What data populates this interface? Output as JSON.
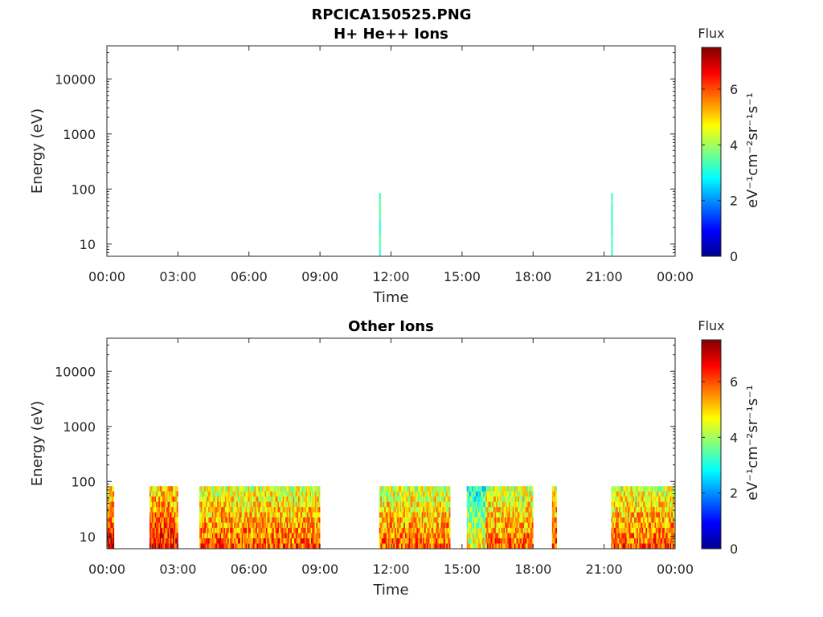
{
  "figure": {
    "title": "RPCICA150525.PNG"
  },
  "chart_data": [
    {
      "type": "heatmap",
      "title": "H+ He++ Ions",
      "xlabel": "Time",
      "ylabel": "Energy (eV)",
      "x_ticks": [
        "00:00",
        "03:00",
        "06:00",
        "09:00",
        "12:00",
        "15:00",
        "18:00",
        "21:00",
        "00:00"
      ],
      "x_range_hours": [
        0,
        24
      ],
      "y_scale": "log",
      "y_ticks": [
        10,
        100,
        1000,
        10000
      ],
      "y_tick_labels": [
        "10",
        "100",
        "1000",
        "10000"
      ],
      "y_range": [
        6,
        40000
      ],
      "colorbar": {
        "title": "Flux",
        "label": "eV⁻¹cm⁻²sr⁻¹s⁻¹",
        "range": [
          0,
          7.5
        ],
        "ticks": [
          0,
          2,
          4,
          6
        ],
        "colormap": "jet"
      },
      "data_blocks": [
        {
          "start_hour": 11.5,
          "end_hour": 11.56,
          "e_min": 6,
          "e_max": 85,
          "flux": 3.3
        },
        {
          "start_hour": 21.3,
          "end_hour": 21.36,
          "e_min": 6,
          "e_max": 85,
          "flux": 3.3
        }
      ]
    },
    {
      "type": "heatmap",
      "title": "Other Ions",
      "xlabel": "Time",
      "ylabel": "Energy (eV)",
      "x_ticks": [
        "00:00",
        "03:00",
        "06:00",
        "09:00",
        "12:00",
        "15:00",
        "18:00",
        "21:00",
        "00:00"
      ],
      "x_range_hours": [
        0,
        24
      ],
      "y_scale": "log",
      "y_ticks": [
        10,
        100,
        1000,
        10000
      ],
      "y_tick_labels": [
        "10",
        "100",
        "1000",
        "10000"
      ],
      "y_range": [
        6,
        40000
      ],
      "colorbar": {
        "title": "Flux",
        "label": "eV⁻¹cm⁻²sr⁻¹s⁻¹",
        "range": [
          0,
          7.5
        ],
        "ticks": [
          0,
          2,
          4,
          6
        ],
        "colormap": "jet"
      },
      "data_blocks": [
        {
          "start_hour": 0.0,
          "end_hour": 0.3,
          "e_min": 6,
          "e_max": 82,
          "flux": 6.6
        },
        {
          "start_hour": 1.8,
          "end_hour": 3.0,
          "e_min": 6,
          "e_max": 82,
          "flux": 6.5
        },
        {
          "start_hour": 3.9,
          "end_hour": 9.0,
          "e_min": 6,
          "e_max": 82,
          "flux": 6.0
        },
        {
          "start_hour": 11.5,
          "end_hour": 14.5,
          "e_min": 6,
          "e_max": 82,
          "flux": 5.9
        },
        {
          "start_hour": 15.2,
          "end_hour": 16.0,
          "e_min": 6,
          "e_max": 82,
          "flux": 4.6
        },
        {
          "start_hour": 16.0,
          "end_hour": 18.0,
          "e_min": 6,
          "e_max": 82,
          "flux": 5.8
        },
        {
          "start_hour": 18.8,
          "end_hour": 19.0,
          "e_min": 6,
          "e_max": 82,
          "flux": 6.2
        },
        {
          "start_hour": 21.3,
          "end_hour": 24.0,
          "e_min": 6,
          "e_max": 82,
          "flux": 6.0
        }
      ]
    }
  ]
}
